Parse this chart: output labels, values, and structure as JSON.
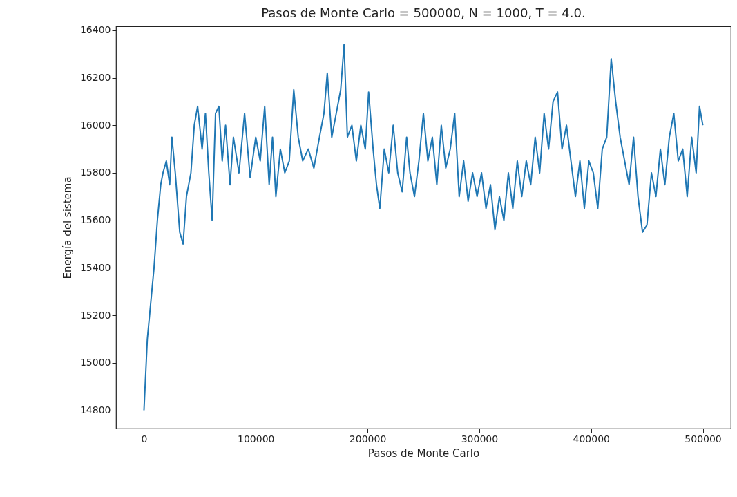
{
  "chart_data": {
    "type": "line",
    "title": "Pasos de Monte Carlo = 500000, N = 1000, T = 4.0.",
    "xlabel": "Pasos de Monte Carlo",
    "ylabel": "Energía del sistema",
    "x": [
      0,
      3000,
      6000,
      9000,
      12000,
      15000,
      17000,
      20000,
      23000,
      25000,
      28000,
      32000,
      35000,
      38000,
      42000,
      45000,
      48000,
      52000,
      55000,
      58000,
      61000,
      64000,
      67000,
      70000,
      73000,
      77000,
      80000,
      85000,
      90000,
      95000,
      100000,
      104000,
      108000,
      112000,
      115000,
      118000,
      122000,
      126000,
      130000,
      134000,
      138000,
      142000,
      147000,
      152000,
      157000,
      161000,
      164000,
      168000,
      172000,
      176000,
      179000,
      182000,
      186000,
      190000,
      194000,
      198000,
      201000,
      205000,
      208000,
      211000,
      215000,
      219000,
      223000,
      227000,
      231000,
      235000,
      238000,
      242000,
      246000,
      250000,
      254000,
      258000,
      262000,
      266000,
      270000,
      274000,
      278000,
      282000,
      286000,
      290000,
      294000,
      298000,
      302000,
      306000,
      310000,
      314000,
      318000,
      322000,
      326000,
      330000,
      334000,
      338000,
      342000,
      346000,
      350000,
      354000,
      358000,
      362000,
      366000,
      370000,
      374000,
      378000,
      382000,
      386000,
      390000,
      394000,
      398000,
      402000,
      406000,
      410000,
      414000,
      418000,
      422000,
      426000,
      430000,
      434000,
      438000,
      442000,
      446000,
      450000,
      454000,
      458000,
      462000,
      466000,
      470000,
      474000,
      478000,
      482000,
      486000,
      490000,
      494000,
      497000,
      500000
    ],
    "series": [
      {
        "color": "#1f77b4",
        "values": [
          14800,
          15100,
          15250,
          15400,
          15600,
          15750,
          15800,
          15850,
          15750,
          15950,
          15800,
          15550,
          15500,
          15700,
          15800,
          16000,
          16080,
          15900,
          16050,
          15800,
          15600,
          16050,
          16080,
          15850,
          16000,
          15750,
          15950,
          15800,
          16050,
          15780,
          15950,
          15850,
          16080,
          15750,
          15950,
          15700,
          15900,
          15800,
          15850,
          16150,
          15950,
          15850,
          15900,
          15820,
          15950,
          16050,
          16220,
          15950,
          16050,
          16150,
          16340,
          15950,
          16000,
          15850,
          16000,
          15900,
          16140,
          15900,
          15750,
          15650,
          15900,
          15800,
          16000,
          15800,
          15720,
          15950,
          15800,
          15700,
          15850,
          16050,
          15850,
          15950,
          15750,
          16000,
          15820,
          15900,
          16050,
          15700,
          15850,
          15680,
          15800,
          15700,
          15800,
          15650,
          15750,
          15560,
          15700,
          15600,
          15800,
          15650,
          15850,
          15700,
          15850,
          15750,
          15950,
          15800,
          16050,
          15900,
          16100,
          16140,
          15900,
          16000,
          15850,
          15700,
          15850,
          15650,
          15850,
          15800,
          15650,
          15900,
          15950,
          16280,
          16100,
          15950,
          15850,
          15750,
          15950,
          15700,
          15550,
          15580,
          15800,
          15700,
          15900,
          15750,
          15950,
          16050,
          15850,
          15900,
          15700,
          15950,
          15800,
          16080,
          16000
        ]
      }
    ],
    "xlim": [
      -25000,
      525000
    ],
    "xticks": [
      0,
      100000,
      200000,
      300000,
      400000,
      500000
    ],
    "ylim": [
      14723,
      16417
    ],
    "yticks": [
      14800,
      15000,
      15200,
      15400,
      15600,
      15800,
      16000,
      16200,
      16400
    ],
    "grid": false,
    "legend": false
  }
}
